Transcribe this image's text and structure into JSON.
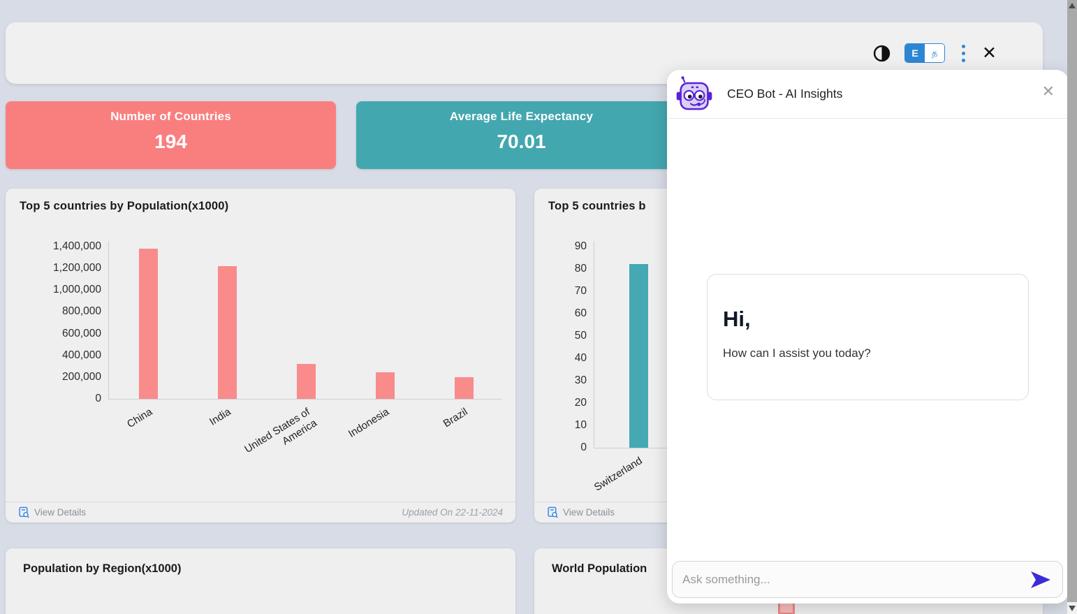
{
  "header": {
    "icons": {
      "contrast": "contrast-toggle-icon",
      "menu": "kebab-menu-icon",
      "close_glyph": "✕"
    },
    "language_toggle": {
      "options": [
        {
          "label": "E",
          "active": true
        },
        {
          "label": "த",
          "active": false
        }
      ]
    }
  },
  "stats": [
    {
      "label": "Number of Countries",
      "value": "194",
      "bg": "#F97F7F"
    },
    {
      "label": "Average Life Expectancy",
      "value": "70.01",
      "bg": "#43A7AF"
    }
  ],
  "chart_cards": [
    {
      "title": "Top 5 countries by Population(x1000)",
      "footer": {
        "view_details": "View Details",
        "updated": "Updated On 22-11-2024"
      }
    },
    {
      "title": "Top 5 countries b",
      "footer": {
        "view_details": "View Details"
      }
    }
  ],
  "chart_data": [
    {
      "type": "bar",
      "title": "Top 5 countries by Population(x1000)",
      "categories": [
        "China",
        "India",
        "United States of\nAmerica",
        "Indonesia",
        "Brazil"
      ],
      "values": [
        1380000,
        1220000,
        318000,
        245000,
        201000
      ],
      "ylim": [
        0,
        1400000
      ],
      "ytick_step": 200000,
      "bar_color": "#F98B8B",
      "grid": false,
      "legend": "none",
      "xlabel": "",
      "ylabel": ""
    },
    {
      "type": "bar",
      "title": "Top 5 countries b",
      "categories": [
        "Switzerland"
      ],
      "values": [
        82.2
      ],
      "ylim": [
        0,
        90
      ],
      "ytick_step": 10,
      "bar_color": "#45A9B3",
      "grid": false,
      "legend": "none",
      "xlabel": "",
      "ylabel": "",
      "note": "remaining bars hidden behind chat panel"
    }
  ],
  "bottom_cards": [
    {
      "title": "Population by Region(x1000)"
    },
    {
      "title": "World Population"
    }
  ],
  "chat": {
    "title": "CEO Bot - AI Insights",
    "close_glyph": "✕",
    "message": {
      "greeting": "Hi,",
      "text": "How can I assist you today?"
    },
    "input_placeholder": "Ask something...",
    "accent": "#3B2BD8"
  }
}
